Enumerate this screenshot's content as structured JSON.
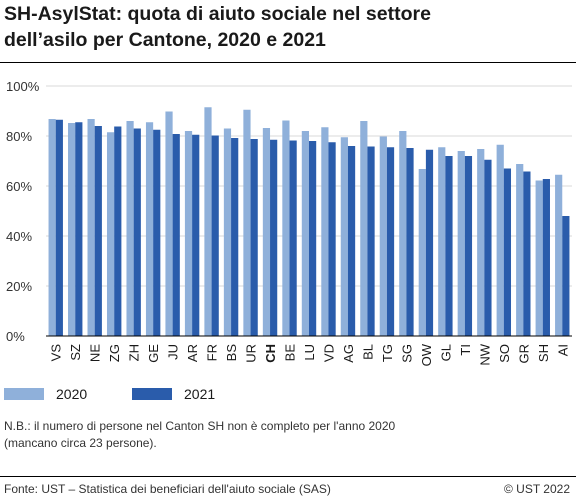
{
  "header": {
    "title_line1": "SH-AsylStat: quota di aiuto sociale nel settore",
    "title_line2": "dell’asilo per Cantone, 2020 e 2021"
  },
  "note": {
    "line1": "N.B.: il numero di persone nel Canton SH non è completo per l'anno 2020",
    "line2": "(mancano circa 23 persone)."
  },
  "footer": {
    "source": "Fonte: UST – Statistica dei beneficiari dell'aiuto sociale (SAS)",
    "copyright": "© UST 2022"
  },
  "colors": {
    "series_2020": "#8fb0da",
    "series_2021": "#2a5cab",
    "grid": "#d9d9d9",
    "axis": "#000000",
    "text": "#1a1a1a"
  },
  "chart_data": {
    "type": "bar",
    "categories": [
      "VS",
      "SZ",
      "NE",
      "ZG",
      "ZH",
      "GE",
      "JU",
      "AR",
      "FR",
      "BS",
      "UR",
      "CH",
      "BE",
      "LU",
      "VD",
      "AG",
      "BL",
      "TG",
      "SG",
      "OW",
      "GL",
      "TI",
      "NW",
      "SO",
      "GR",
      "SH",
      "AI"
    ],
    "highlight_category": "CH",
    "series": [
      {
        "name": "2020",
        "values": [
          86.8,
          85.2,
          86.8,
          81.5,
          86.0,
          85.5,
          89.8,
          82.0,
          91.5,
          83.0,
          90.5,
          83.2,
          86.2,
          82.0,
          83.5,
          79.5,
          86.0,
          79.8,
          82.0,
          66.8,
          75.5,
          74.0,
          74.8,
          76.5,
          68.8,
          62.2,
          64.5
        ]
      },
      {
        "name": "2021",
        "values": [
          86.5,
          85.5,
          84.0,
          83.8,
          83.0,
          82.5,
          80.8,
          80.5,
          80.2,
          79.2,
          78.8,
          78.5,
          78.2,
          78.0,
          77.5,
          76.0,
          75.8,
          75.5,
          75.2,
          74.5,
          72.0,
          72.0,
          70.5,
          67.0,
          65.8,
          62.8,
          48.0
        ]
      }
    ],
    "y_ticks": [
      "0%",
      "20%",
      "40%",
      "60%",
      "80%",
      "100%"
    ],
    "y_tick_values": [
      0,
      20,
      40,
      60,
      80,
      100
    ],
    "ylim": [
      0,
      100
    ],
    "grid": true,
    "legend_position": "bottom-left"
  }
}
